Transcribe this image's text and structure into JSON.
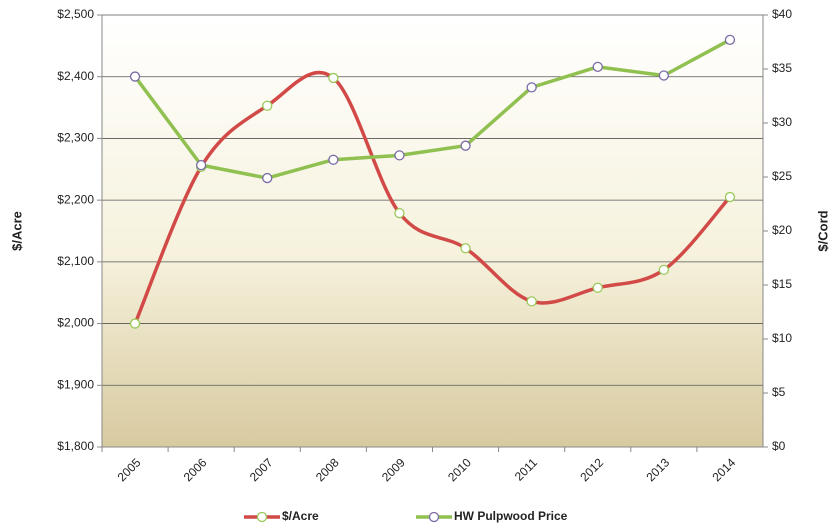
{
  "chart_data": {
    "type": "line",
    "categories": [
      "2005",
      "2006",
      "2007",
      "2008",
      "2009",
      "2010",
      "2011",
      "2012",
      "2013",
      "2014"
    ],
    "series": [
      {
        "name": "$/Acre",
        "color": "#d24a48",
        "marker_color": "#9bc95a",
        "smooth": true,
        "axis": "y",
        "values": [
          2000,
          2254,
          2353,
          2398,
          2179,
          2122,
          2036,
          2058,
          2087,
          2205
        ]
      },
      {
        "name": "HW Pulpwood Price",
        "color": "#8fc050",
        "marker_color": "#7a6aa6",
        "smooth": false,
        "axis": "y2",
        "values": [
          34.3,
          26.1,
          24.9,
          26.6,
          27.0,
          27.9,
          33.3,
          35.2,
          34.4,
          37.7
        ]
      }
    ],
    "ylabel": "$/Acre",
    "y2label": "$/Cord",
    "ylim": [
      1800,
      2500
    ],
    "yticks": [
      {
        "value": 1800,
        "label": "$1,800"
      },
      {
        "value": 1900,
        "label": "$1,900"
      },
      {
        "value": 2000,
        "label": "$2,000"
      },
      {
        "value": 2100,
        "label": "$2,100"
      },
      {
        "value": 2200,
        "label": "$2,200"
      },
      {
        "value": 2300,
        "label": "$2,300"
      },
      {
        "value": 2400,
        "label": "$2,400"
      },
      {
        "value": 2500,
        "label": "$2,500"
      }
    ],
    "y2lim": [
      0,
      40
    ],
    "y2ticks": [
      {
        "value": 0,
        "label": "$0"
      },
      {
        "value": 5,
        "label": "$5"
      },
      {
        "value": 10,
        "label": "$10"
      },
      {
        "value": 15,
        "label": "$15"
      },
      {
        "value": 20,
        "label": "$20"
      },
      {
        "value": 25,
        "label": "$25"
      },
      {
        "value": 30,
        "label": "$30"
      },
      {
        "value": 35,
        "label": "$35"
      },
      {
        "value": 40,
        "label": "$40"
      }
    ],
    "grid": true,
    "legend": "bottom"
  }
}
